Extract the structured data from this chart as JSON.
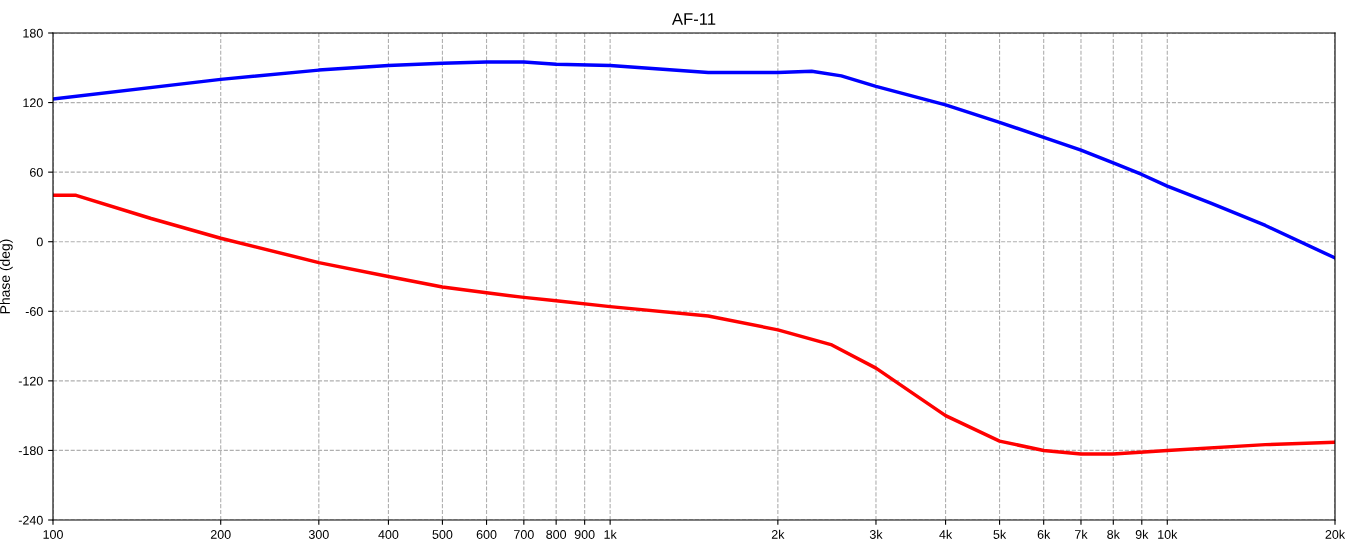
{
  "chart_data": {
    "type": "line",
    "title": "AF-11",
    "ylabel": "Phase (deg)",
    "log": "x",
    "series": [
      {
        "color": "#0000ff",
        "x": [
          100,
          200,
          300,
          400,
          500,
          600,
          700,
          800,
          1000,
          1500,
          2000,
          2300,
          2600,
          3000,
          4000,
          5000,
          6000,
          7000,
          8000,
          9000,
          10000,
          12000,
          15000,
          20000
        ],
        "values": [
          123,
          140,
          148,
          152,
          154,
          155,
          155,
          153,
          152,
          146,
          146,
          147,
          143,
          134,
          118,
          103,
          90,
          79,
          68,
          58,
          48,
          33,
          14,
          -14
        ]
      },
      {
        "color": "#ff0000",
        "x": [
          100,
          110,
          150,
          200,
          300,
          400,
          500,
          600,
          700,
          800,
          1000,
          1500,
          2000,
          2500,
          3000,
          3500,
          4000,
          5000,
          6000,
          7000,
          8000,
          10000,
          15000,
          20000
        ],
        "values": [
          40,
          40,
          20,
          3,
          -18,
          -30,
          -39,
          -44,
          -48,
          -51,
          -56,
          -64,
          -76,
          -89,
          -109,
          -131,
          -150,
          -172,
          -180,
          -183,
          -183,
          -180,
          -175,
          -173
        ]
      }
    ],
    "xlim": [
      100,
      20000
    ],
    "xticks": [
      100,
      200,
      300,
      400,
      500,
      600,
      700,
      800,
      900,
      {
        "value": 1000,
        "label": "1k"
      },
      {
        "value": 2000,
        "label": "2k"
      },
      {
        "value": 3000,
        "label": "3k"
      },
      {
        "value": 4000,
        "label": "4k"
      },
      {
        "value": 5000,
        "label": "5k"
      },
      {
        "value": 6000,
        "label": "6k"
      },
      {
        "value": 7000,
        "label": "7k"
      },
      {
        "value": 8000,
        "label": "8k"
      },
      {
        "value": 9000,
        "label": "9k"
      },
      {
        "value": 10000,
        "label": "10k"
      },
      {
        "value": 20000,
        "label": "20k"
      }
    ],
    "ylim": [
      -240,
      180
    ],
    "yticks": [
      -240,
      -180,
      -120,
      -60,
      0,
      60,
      120,
      180
    ],
    "grid": true,
    "line_style": "solid",
    "marker": "none"
  }
}
